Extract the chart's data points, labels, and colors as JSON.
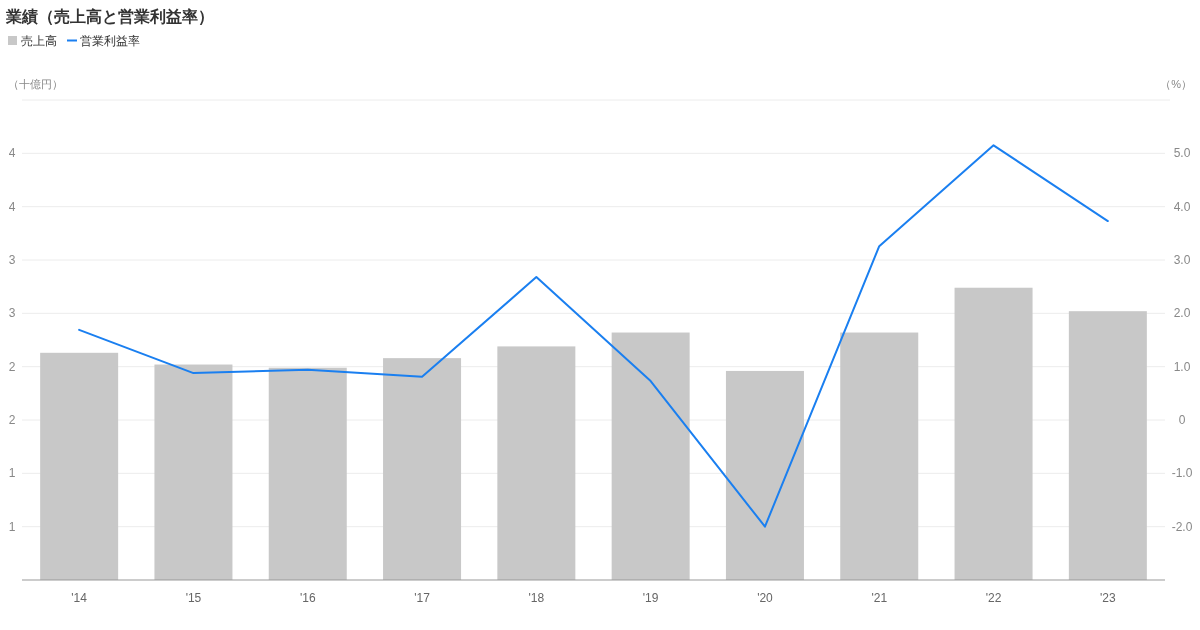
{
  "chart_data": {
    "type": "bar",
    "title": "業績（売上高と営業利益率）",
    "ylabel": "（十億円）",
    "y2label": "（%）",
    "categories": [
      "'14",
      "'15",
      "'16",
      "'17",
      "'18",
      "'19",
      "'20",
      "'21",
      "'22",
      "'23"
    ],
    "series": [
      {
        "name": "売上高",
        "color": "#c8c8c8",
        "values": [
          2.13,
          2.02,
          1.99,
          2.08,
          2.19,
          2.32,
          1.96,
          2.32,
          2.74,
          2.52
        ]
      },
      {
        "name": "営業利益率",
        "type": "line",
        "axis": "y2",
        "color": "#1a7ff0",
        "values": [
          1.69,
          0.88,
          0.94,
          0.81,
          2.68,
          0.73,
          -2.0,
          3.26,
          5.15,
          3.73
        ]
      }
    ],
    "ylim": [
      0,
      4.5
    ],
    "yticks": [
      {
        "value": 0.5,
        "label": "1"
      },
      {
        "value": 1,
        "label": "1"
      },
      {
        "value": 1.5,
        "label": "2"
      },
      {
        "value": 2,
        "label": "2"
      },
      {
        "value": 2.5,
        "label": "3"
      },
      {
        "value": 3,
        "label": "3"
      },
      {
        "value": 3.5,
        "label": "4"
      },
      {
        "value": 4,
        "label": "4"
      },
      {
        "value": 4.5,
        "label": null
      }
    ],
    "y2lim": [
      -3,
      6
    ],
    "y2ticks": [
      {
        "value": -2,
        "label": "-2.0"
      },
      {
        "value": -1,
        "label": "-1.0"
      },
      {
        "value": 0,
        "label": "0"
      },
      {
        "value": 1,
        "label": "1.0"
      },
      {
        "value": 2,
        "label": "2.0"
      },
      {
        "value": 3,
        "label": "3.0"
      },
      {
        "value": 4,
        "label": "4.0"
      },
      {
        "value": 5,
        "label": "5.0"
      },
      {
        "value": 6,
        "label": null
      }
    ],
    "grid": "y",
    "legend": "top left"
  }
}
